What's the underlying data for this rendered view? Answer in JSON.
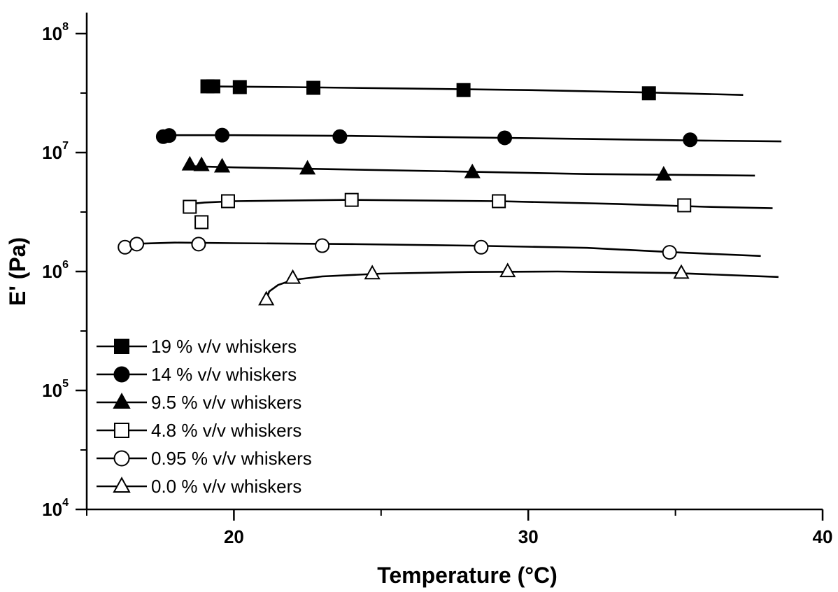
{
  "chart_data": {
    "type": "line",
    "title": "",
    "xlabel": "Temperature (°C)",
    "ylabel": "E' (Pa)",
    "xlim": [
      15,
      40
    ],
    "ylim": [
      10000,
      100000000
    ],
    "yscale": "log",
    "x_ticks": [
      "20",
      "30",
      "40"
    ],
    "y_ticks": [
      {
        "base": "10",
        "exp": "8",
        "value": 100000000
      },
      {
        "base": "10",
        "exp": "7",
        "value": 10000000
      },
      {
        "base": "10",
        "exp": "6",
        "value": 1000000
      },
      {
        "base": "10",
        "exp": "5",
        "value": 100000
      },
      {
        "base": "10",
        "exp": "4",
        "value": 10000
      }
    ],
    "grid": false,
    "legend_position": "bottom-left",
    "series": [
      {
        "name": "19 % v/v whiskers",
        "marker": "square",
        "filled": true,
        "line": [
          [
            19.0,
            36000000
          ],
          [
            22.0,
            35500000
          ],
          [
            26.0,
            34500000
          ],
          [
            30.0,
            33500000
          ],
          [
            34.0,
            32000000
          ],
          [
            37.3,
            30500000
          ]
        ],
        "points": [
          [
            19.1,
            36000000
          ],
          [
            19.3,
            36000000
          ],
          [
            20.2,
            35500000
          ],
          [
            22.7,
            35000000
          ],
          [
            27.8,
            33500000
          ],
          [
            34.1,
            31500000
          ]
        ]
      },
      {
        "name": "14 % v/v whiskers",
        "marker": "circle",
        "filled": true,
        "line": [
          [
            17.6,
            14000000
          ],
          [
            20.0,
            14000000
          ],
          [
            24.0,
            13800000
          ],
          [
            28.0,
            13400000
          ],
          [
            32.0,
            13000000
          ],
          [
            36.0,
            12600000
          ],
          [
            38.6,
            12400000
          ]
        ],
        "points": [
          [
            17.6,
            13600000
          ],
          [
            17.8,
            13900000
          ],
          [
            19.6,
            14000000
          ],
          [
            23.6,
            13600000
          ],
          [
            29.2,
            13300000
          ],
          [
            35.5,
            12800000
          ]
        ]
      },
      {
        "name": "9.5 % v/v whiskers",
        "marker": "triangle",
        "filled": true,
        "line": [
          [
            18.4,
            7700000
          ],
          [
            20.0,
            7500000
          ],
          [
            24.0,
            7200000
          ],
          [
            28.0,
            6900000
          ],
          [
            32.0,
            6600000
          ],
          [
            37.7,
            6400000
          ]
        ],
        "points": [
          [
            18.5,
            7900000
          ],
          [
            18.9,
            7800000
          ],
          [
            19.6,
            7600000
          ],
          [
            22.5,
            7300000
          ],
          [
            28.1,
            6800000
          ],
          [
            34.6,
            6500000
          ]
        ]
      },
      {
        "name": "4.8 % v/v whiskers",
        "marker": "square",
        "filled": false,
        "line": [
          [
            18.5,
            3700000
          ],
          [
            19.0,
            3800000
          ],
          [
            20.0,
            3900000
          ],
          [
            24.0,
            4000000
          ],
          [
            29.0,
            3900000
          ],
          [
            33.0,
            3700000
          ],
          [
            36.0,
            3500000
          ],
          [
            38.3,
            3400000
          ]
        ],
        "points": [
          [
            18.5,
            3500000
          ],
          [
            18.9,
            2600000
          ],
          [
            19.8,
            3900000
          ],
          [
            24.0,
            4000000
          ],
          [
            29.0,
            3900000
          ],
          [
            35.3,
            3600000
          ]
        ]
      },
      {
        "name": "0.95 % v/v whiskers",
        "marker": "circle",
        "filled": false,
        "line": [
          [
            16.3,
            1700000
          ],
          [
            18.0,
            1750000
          ],
          [
            20.0,
            1730000
          ],
          [
            24.0,
            1700000
          ],
          [
            28.0,
            1650000
          ],
          [
            32.0,
            1580000
          ],
          [
            35.0,
            1450000
          ],
          [
            37.9,
            1350000
          ]
        ],
        "points": [
          [
            16.3,
            1600000
          ],
          [
            16.7,
            1700000
          ],
          [
            18.8,
            1700000
          ],
          [
            23.0,
            1650000
          ],
          [
            28.4,
            1600000
          ],
          [
            34.8,
            1450000
          ]
        ]
      },
      {
        "name": "0.0 % v/v whiskers",
        "marker": "triangle",
        "filled": false,
        "line": [
          [
            21.1,
            580000
          ],
          [
            21.2,
            680000
          ],
          [
            21.5,
            770000
          ],
          [
            22.0,
            850000
          ],
          [
            23.0,
            910000
          ],
          [
            25.0,
            960000
          ],
          [
            28.0,
            990000
          ],
          [
            31.0,
            1000000
          ],
          [
            35.0,
            970000
          ],
          [
            38.5,
            900000
          ]
        ],
        "points": [
          [
            21.1,
            580000
          ],
          [
            22.0,
            880000
          ],
          [
            24.7,
            960000
          ],
          [
            29.3,
            1000000
          ],
          [
            35.2,
            970000
          ]
        ]
      }
    ]
  }
}
